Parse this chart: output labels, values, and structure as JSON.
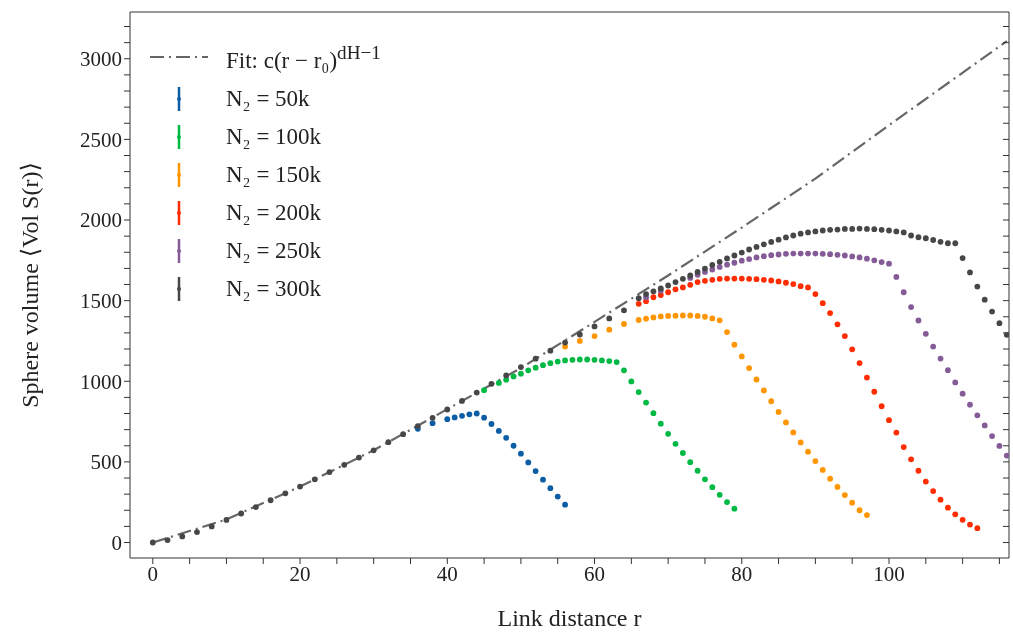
{
  "chart_data": {
    "type": "scatter",
    "xlabel": "Link distance r",
    "ylabel": "Sphere volume ⟨Vol S(r)⟩",
    "legend": "top left",
    "marker": "circle",
    "xlim": [
      -3.1,
      116.3
    ],
    "ylim": [
      -96,
      3290
    ],
    "xticks": [
      0,
      {
        "value": 5,
        "label": null
      },
      {
        "value": 10,
        "label": null
      },
      {
        "value": 15,
        "label": null
      },
      20,
      {
        "value": 25,
        "label": null
      },
      {
        "value": 30,
        "label": null
      },
      {
        "value": 35,
        "label": null
      },
      40,
      {
        "value": 45,
        "label": null
      },
      {
        "value": 50,
        "label": null
      },
      {
        "value": 55,
        "label": null
      },
      60,
      {
        "value": 65,
        "label": null
      },
      {
        "value": 70,
        "label": null
      },
      {
        "value": 75,
        "label": null
      },
      80,
      {
        "value": 85,
        "label": null
      },
      {
        "value": 90,
        "label": null
      },
      {
        "value": 95,
        "label": null
      },
      100,
      {
        "value": 105,
        "label": null
      },
      {
        "value": 110,
        "label": null
      },
      {
        "value": 115,
        "label": null
      }
    ],
    "yticks": [
      0,
      {
        "value": 100,
        "label": null
      },
      {
        "value": 200,
        "label": null
      },
      {
        "value": 300,
        "label": null
      },
      {
        "value": 400,
        "label": null
      },
      500,
      {
        "value": 600,
        "label": null
      },
      {
        "value": 700,
        "label": null
      },
      {
        "value": 800,
        "label": null
      },
      {
        "value": 900,
        "label": null
      },
      1000,
      {
        "value": 1100,
        "label": null
      },
      {
        "value": 1200,
        "label": null
      },
      {
        "value": 1300,
        "label": null
      },
      {
        "value": 1400,
        "label": null
      },
      1500,
      {
        "value": 1600,
        "label": null
      },
      {
        "value": 1700,
        "label": null
      },
      {
        "value": 1800,
        "label": null
      },
      {
        "value": 1900,
        "label": null
      },
      2000,
      {
        "value": 2100,
        "label": null
      },
      {
        "value": 2200,
        "label": null
      },
      {
        "value": 2300,
        "label": null
      },
      {
        "value": 2400,
        "label": null
      },
      2500,
      {
        "value": 2600,
        "label": null
      },
      {
        "value": 2700,
        "label": null
      },
      {
        "value": 2800,
        "label": null
      },
      {
        "value": 2900,
        "label": null
      },
      3000,
      {
        "value": 3100,
        "label": null
      },
      {
        "value": 3200,
        "label": null
      }
    ],
    "series": [
      {
        "name": "Fit: c(r − r₀)$^{dH−1}$",
        "type": "line",
        "line_style": "dashed",
        "marker": "none",
        "color": "#666666",
        "x": [
          0,
          10,
          20,
          30,
          40,
          50,
          60,
          70,
          80,
          90,
          100,
          116
        ],
        "values": [
          0,
          143,
          347,
          572,
          827,
          1082,
          1368,
          1656,
          1953,
          2257,
          2588,
          3109
        ]
      },
      {
        "name": "N₂ = 50k",
        "color": "#0c5da5",
        "x": [
          36,
          38,
          40,
          41,
          42,
          43,
          44,
          45,
          46,
          47,
          48,
          49,
          50,
          51,
          52,
          53,
          54,
          55,
          56
        ],
        "values": [
          705,
          740,
          765,
          776,
          786,
          795,
          800,
          774,
          735,
          692,
          649,
          600,
          551,
          497,
          443,
          390,
          337,
          285,
          235
        ]
      },
      {
        "name": "N₂ = 100k",
        "color": "#00b945",
        "x": [
          45,
          46,
          47,
          48,
          49,
          50,
          51,
          52,
          53,
          54,
          55,
          56,
          57,
          58,
          59,
          60,
          61,
          62,
          63,
          64,
          65,
          66,
          67,
          68,
          69,
          70,
          71,
          72,
          73,
          74,
          75,
          76,
          77,
          78,
          79
        ],
        "values": [
          945,
          null,
          990,
          1010,
          1030,
          1047,
          1068,
          1084,
          1100,
          1112,
          1122,
          1129,
          1133,
          1135,
          1135,
          1133,
          1129,
          1125,
          1119,
          1068,
          999,
          933,
          868,
          802,
          737,
          674,
          612,
          555,
          498,
          445,
          392,
          343,
          296,
          251,
          210
        ]
      },
      {
        "name": "N₂ = 150k",
        "color": "#ff9500",
        "x": [
          56,
          58,
          60,
          62,
          64,
          66,
          67,
          68,
          69,
          70,
          71,
          72,
          73,
          74,
          75,
          76,
          77,
          78,
          79,
          80,
          81,
          82,
          83,
          84,
          85,
          86,
          87,
          88,
          89,
          90,
          91,
          92,
          93,
          94,
          95,
          96,
          97
        ],
        "values": [
          1215,
          1250,
          1280,
          1320,
          1355,
          1380,
          1388,
          1396,
          1402,
          1405,
          1407,
          1408,
          1408,
          1405,
          1400,
          1390,
          1378,
          1305,
          1227,
          1154,
          1082,
          1011,
          943,
          876,
          810,
          745,
          683,
          621,
          563,
          505,
          450,
          396,
          345,
          294,
          247,
          200,
          170
        ]
      },
      {
        "name": "N₂ = 200k",
        "color": "#ff2c00",
        "x": [
          66,
          67,
          68,
          69,
          70,
          71,
          72,
          73,
          74,
          75,
          76,
          77,
          78,
          79,
          80,
          81,
          82,
          83,
          84,
          85,
          86,
          87,
          88,
          89,
          90,
          91,
          92,
          93,
          94,
          95,
          96,
          97,
          98,
          99,
          100,
          101,
          102,
          103,
          104,
          105,
          106,
          107,
          108,
          109,
          110,
          111,
          112
        ],
        "values": [
          1480,
          1497,
          1521,
          1535,
          1552,
          1570,
          1582,
          1598,
          1615,
          1623,
          1629,
          1635,
          1637,
          1637,
          1637,
          1635,
          1633,
          1629,
          1625,
          1619,
          1611,
          1603,
          1590,
          1582,
          1541,
          1484,
          1423,
          1353,
          1280,
          1198,
          1113,
          1023,
          935,
          845,
          759,
          682,
          592,
          516,
          445,
          378,
          319,
          266,
          216,
          175,
          141,
          111,
          89
        ]
      },
      {
        "name": "N₂ = 250k",
        "color": "#845b97",
        "x": [
          67,
          68,
          69,
          70,
          71,
          72,
          73,
          74,
          75,
          76,
          77,
          78,
          79,
          80,
          81,
          82,
          83,
          84,
          85,
          86,
          87,
          88,
          89,
          90,
          91,
          92,
          93,
          94,
          95,
          96,
          97,
          98,
          99,
          100,
          101,
          102,
          103,
          104,
          105,
          106,
          107,
          108,
          109,
          110,
          111,
          112,
          113,
          114,
          115,
          116
        ],
        "values": [
          1521,
          null,
          1562,
          null,
          null,
          null,
          1641,
          1660,
          1678,
          1693,
          1709,
          1723,
          1735,
          1748,
          1758,
          1768,
          1776,
          1782,
          1786,
          1790,
          1792,
          1792,
          1792,
          1792,
          1790,
          1788,
          1784,
          1780,
          1774,
          1768,
          1760,
          1750,
          1739,
          1729,
          1647,
          1552,
          1460,
          1377,
          1294,
          1215,
          1141,
          1069,
          993,
          923,
          855,
          789,
          726,
          660,
          599,
          539
        ]
      },
      {
        "name": "N₂ = 300k",
        "color": "#474747",
        "x": [
          0,
          2,
          4,
          6,
          8,
          10,
          12,
          14,
          16,
          18,
          20,
          22,
          24,
          26,
          28,
          30,
          32,
          34,
          36,
          38,
          40,
          42,
          44,
          46,
          48,
          50,
          52,
          54,
          56,
          58,
          60,
          62,
          64,
          66,
          67,
          68,
          69,
          70,
          71,
          72,
          73,
          74,
          75,
          76,
          77,
          78,
          79,
          80,
          81,
          82,
          83,
          84,
          85,
          86,
          87,
          88,
          89,
          90,
          91,
          92,
          93,
          94,
          95,
          96,
          97,
          98,
          99,
          100,
          101,
          102,
          103,
          104,
          105,
          106,
          107,
          108,
          109,
          110,
          111,
          112,
          113,
          114,
          115,
          116
        ],
        "values": [
          0,
          15,
          38,
          65,
          100,
          140,
          180,
          220,
          262,
          305,
          347,
          392,
          437,
          482,
          527,
          572,
          622,
          672,
          722,
          773,
          825,
          878,
          930,
          984,
          1036,
          1088,
          1140,
          1190,
          1240,
          1290,
          1340,
          1390,
          1440,
          1515,
          1541,
          1558,
          1576,
          1594,
          1615,
          1635,
          1656,
          1678,
          1699,
          1721,
          1741,
          1762,
          1780,
          1798,
          1817,
          1833,
          1849,
          1864,
          1878,
          1892,
          1904,
          1915,
          1923,
          1929,
          1935,
          1939,
          1941,
          1945,
          1945,
          1947,
          1945,
          1943,
          1939,
          1935,
          1929,
          1923,
          1904,
          1893,
          1887,
          1876,
          1865,
          1856,
          1856,
          1764,
          1675,
          1587,
          1506,
          1432,
          1360,
          1288
        ]
      }
    ]
  }
}
